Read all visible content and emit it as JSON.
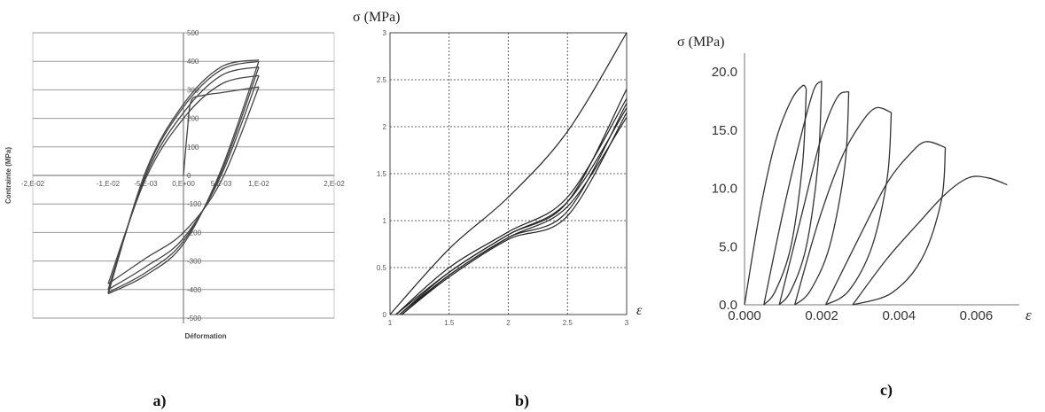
{
  "chart_data": [
    {
      "type": "line",
      "panel_label": "a)",
      "xlabel": "Déformation",
      "ylabel": "Contrainte (MPa)",
      "xlim": [
        -0.02,
        0.02
      ],
      "ylim": [
        -500,
        500
      ],
      "x_ticks": [
        "-2,E-02",
        "-1,E-02",
        "-5,E-03",
        "0,E+00",
        "5,E-03",
        "1,E-02",
        "2,E-02"
      ],
      "y_ticks": [
        "-500",
        "-400",
        "-300",
        "-200",
        "-100",
        "0",
        "100",
        "200",
        "300",
        "400",
        "500"
      ],
      "grid": "horizontal",
      "series": [
        {
          "x": [
            0,
            0.0005,
            0.001,
            0.0025,
            0.005,
            0.0075,
            0.01
          ],
          "y": [
            0,
            150,
            260,
            280,
            290,
            300,
            310
          ]
        },
        {
          "x": [
            0.01,
            0.005,
            0.0,
            -0.005,
            -0.01
          ],
          "y": [
            310,
            -20,
            -200,
            -290,
            -380
          ]
        },
        {
          "x": [
            -0.01,
            -0.005,
            0.0,
            0.005,
            0.01
          ],
          "y": [
            -380,
            -10,
            200,
            320,
            350
          ]
        },
        {
          "x": [
            0.01,
            0.005,
            0.0,
            -0.005,
            -0.01
          ],
          "y": [
            350,
            0,
            -220,
            -320,
            -400
          ]
        },
        {
          "x": [
            -0.01,
            -0.005,
            0.0,
            0.005,
            0.01
          ],
          "y": [
            -400,
            0,
            220,
            350,
            380
          ]
        },
        {
          "x": [
            0.01,
            0.005,
            0.0,
            -0.005,
            -0.01
          ],
          "y": [
            380,
            10,
            -230,
            -340,
            -410
          ]
        },
        {
          "x": [
            -0.01,
            -0.005,
            0.0,
            0.005,
            0.01
          ],
          "y": [
            -410,
            10,
            240,
            370,
            400
          ]
        },
        {
          "x": [
            0.01,
            0.005,
            0.0,
            -0.005,
            -0.01
          ],
          "y": [
            400,
            20,
            -240,
            -350,
            -415
          ]
        },
        {
          "x": [
            -0.01,
            -0.005,
            0.0,
            0.005,
            0.01
          ],
          "y": [
            -415,
            15,
            250,
            380,
            405
          ]
        }
      ]
    },
    {
      "type": "line",
      "panel_label": "b)",
      "ylabel": "σ (MPa)",
      "xlabel": "ε",
      "xlim": [
        1,
        3
      ],
      "ylim": [
        0,
        3
      ],
      "x_ticks": [
        "1",
        "1.5",
        "2",
        "2.5",
        "3"
      ],
      "y_ticks": [
        "0",
        "0.5",
        "1",
        "1.5",
        "2",
        "2.5",
        "3"
      ],
      "grid": "dashed",
      "series": [
        {
          "x": [
            1.0,
            1.5,
            2.0,
            2.5,
            3.0
          ],
          "y": [
            0,
            0.7,
            1.25,
            1.95,
            3.0
          ]
        },
        {
          "x": [
            3.0,
            2.5,
            2.0,
            1.5,
            1.05
          ],
          "y": [
            2.4,
            1.2,
            0.85,
            0.45,
            0
          ]
        },
        {
          "x": [
            1.05,
            1.5,
            2.0,
            2.5,
            3.0
          ],
          "y": [
            0,
            0.5,
            0.88,
            1.25,
            2.3
          ]
        },
        {
          "x": [
            3.0,
            2.5,
            2.0,
            1.5,
            1.08
          ],
          "y": [
            2.25,
            1.1,
            0.82,
            0.42,
            0
          ]
        },
        {
          "x": [
            1.08,
            1.5,
            2.0,
            2.5,
            3.0
          ],
          "y": [
            0,
            0.45,
            0.85,
            1.2,
            2.2
          ]
        },
        {
          "x": [
            3.0,
            2.5,
            2.0,
            1.5,
            1.1
          ],
          "y": [
            2.15,
            1.05,
            0.8,
            0.4,
            0
          ]
        },
        {
          "x": [
            1.1,
            1.5,
            2.0,
            2.5,
            3.0
          ],
          "y": [
            0,
            0.42,
            0.82,
            1.15,
            2.1
          ]
        }
      ]
    },
    {
      "type": "line",
      "panel_label": "c)",
      "ylabel": "σ (MPa)",
      "xlabel": "ε",
      "xlim": [
        0,
        0.007
      ],
      "ylim": [
        0,
        20.0
      ],
      "x_ticks": [
        "0.000",
        "0.002",
        "0.004",
        "0.006"
      ],
      "y_ticks": [
        "0.0",
        "5.0",
        "10.0",
        "15.0",
        "20.0"
      ],
      "grid": "none",
      "series": [
        {
          "x": [
            0.0,
            0.0004,
            0.0008,
            0.0012,
            0.0015,
            0.0016
          ],
          "y": [
            0,
            8,
            14,
            17.5,
            18.8,
            18.5
          ]
        },
        {
          "x": [
            0.0016,
            0.0015,
            0.0012,
            0.0008,
            0.0005
          ],
          "y": [
            18.5,
            12,
            5,
            1.2,
            0
          ]
        },
        {
          "x": [
            0.0005,
            0.001,
            0.0015,
            0.0018,
            0.002
          ],
          "y": [
            0,
            8,
            15,
            18.5,
            19.2
          ]
        },
        {
          "x": [
            0.002,
            0.0019,
            0.0016,
            0.0012,
            0.0009
          ],
          "y": [
            19.2,
            12,
            5,
            1.2,
            0
          ]
        },
        {
          "x": [
            0.0009,
            0.0015,
            0.002,
            0.0024,
            0.0027
          ],
          "y": [
            0,
            8,
            14.5,
            17.8,
            18.3
          ]
        },
        {
          "x": [
            0.0027,
            0.0026,
            0.0022,
            0.0017,
            0.0013
          ],
          "y": [
            18.3,
            12,
            5,
            1.2,
            0
          ]
        },
        {
          "x": [
            0.0013,
            0.0019,
            0.0025,
            0.003,
            0.0034,
            0.0038
          ],
          "y": [
            0,
            7,
            12.5,
            15.5,
            16.9,
            16.5
          ]
        },
        {
          "x": [
            0.0038,
            0.0037,
            0.0033,
            0.0027,
            0.0021
          ],
          "y": [
            16.5,
            11,
            5,
            1.2,
            0
          ]
        },
        {
          "x": [
            0.0021,
            0.003,
            0.0037,
            0.0043,
            0.0047,
            0.0052
          ],
          "y": [
            0,
            6,
            10.5,
            13,
            14.0,
            13.5
          ]
        },
        {
          "x": [
            0.0052,
            0.0051,
            0.0046,
            0.0038,
            0.0028
          ],
          "y": [
            13.5,
            9,
            4,
            1,
            0
          ]
        },
        {
          "x": [
            0.0028,
            0.0037,
            0.0045,
            0.0052,
            0.0058,
            0.0063,
            0.0068
          ],
          "y": [
            0,
            4,
            7,
            9.5,
            10.9,
            10.9,
            10.3
          ]
        }
      ]
    }
  ]
}
